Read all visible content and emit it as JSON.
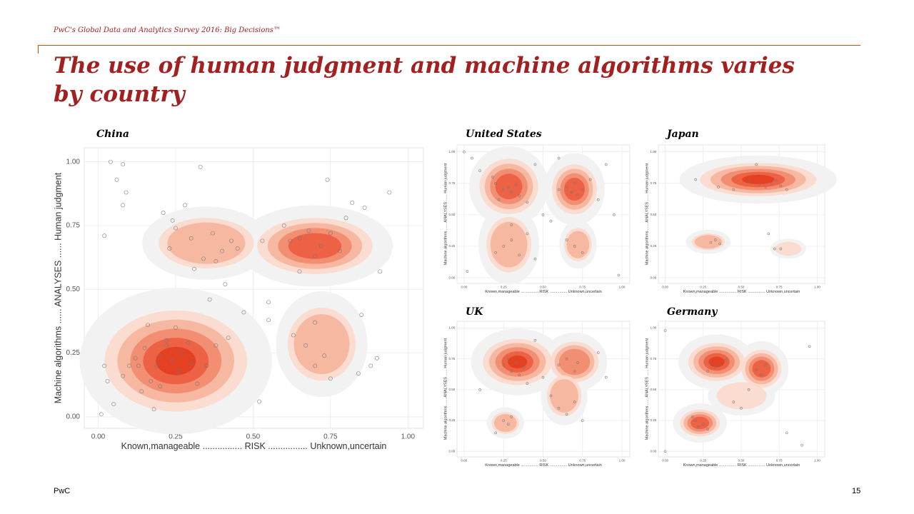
{
  "header": {
    "survey": "PwC's Global Data and Analytics Survey 2016: Big Decisions™",
    "title": "The use of human judgment and machine algorithms varies by country"
  },
  "footer": {
    "brand": "PwC",
    "page": "15"
  },
  "chart_data": [
    {
      "type": "scatter",
      "title": "China",
      "x_label": "Known,manageable ................ RISK ................ Unknown,uncertain",
      "y_label": "Machine algorithms ...... ANALYSES ...... Human judgment",
      "xlim": [
        -0.045,
        1.05
      ],
      "ylim": [
        -0.045,
        1.055
      ],
      "xticks": [
        {
          "value": 0,
          "label": "0.00"
        },
        {
          "value": 0.25,
          "label": "0.25"
        },
        {
          "value": 0.5,
          "label": "0.50"
        },
        {
          "value": 0.75,
          "label": "0.75"
        },
        {
          "value": 1,
          "label": "1.00"
        }
      ],
      "yticks": [
        {
          "value": 0,
          "label": "0.00"
        },
        {
          "value": 0.25,
          "label": "0.25"
        },
        {
          "value": 0.5,
          "label": "0.50"
        },
        {
          "value": 0.75,
          "label": "0.75"
        },
        {
          "value": 1,
          "label": "1.00"
        }
      ],
      "x": [
        0.04,
        0.08,
        0.06,
        0.09,
        0.08,
        0.33,
        0.02,
        0.21,
        0.24,
        0.28,
        0.25,
        0.23,
        0.3,
        0.37,
        0.4,
        0.43,
        0.45,
        0.34,
        0.38,
        0.41,
        0.53,
        0.62,
        0.65,
        0.68,
        0.72,
        0.75,
        0.7,
        0.78,
        0.8,
        0.82,
        0.86,
        0.74,
        0.94,
        0.91,
        0.65,
        0.6,
        0.55,
        0.63,
        0.67,
        0.7,
        0.73,
        0.7,
        0.75,
        0.84,
        0.88,
        0.9,
        0.85,
        0.55,
        0.52,
        0.02,
        0.03,
        0.01,
        0.05,
        0.08,
        0.1,
        0.12,
        0.14,
        0.15,
        0.17,
        0.19,
        0.2,
        0.22,
        0.24,
        0.26,
        0.27,
        0.29,
        0.3,
        0.32,
        0.25,
        0.2,
        0.18,
        0.35,
        0.38,
        0.42,
        0.36,
        0.47,
        0.31,
        0.16,
        0.22,
        0.13
      ],
      "y": [
        1.0,
        0.99,
        0.93,
        0.88,
        0.83,
        0.98,
        0.71,
        0.8,
        0.77,
        0.83,
        0.74,
        0.66,
        0.7,
        0.72,
        0.65,
        0.69,
        0.66,
        0.62,
        0.61,
        0.52,
        0.69,
        0.69,
        0.7,
        0.73,
        0.67,
        0.72,
        0.63,
        0.65,
        0.78,
        0.84,
        0.82,
        0.93,
        0.88,
        0.57,
        0.57,
        0.75,
        0.45,
        0.32,
        0.28,
        0.37,
        0.24,
        0.2,
        0.15,
        0.17,
        0.2,
        0.23,
        0.4,
        0.38,
        0.06,
        0.2,
        0.14,
        0.01,
        0.05,
        0.16,
        0.2,
        0.23,
        0.1,
        0.27,
        0.14,
        0.2,
        0.24,
        0.3,
        0.22,
        0.18,
        0.25,
        0.29,
        0.21,
        0.13,
        0.35,
        0.12,
        0.03,
        0.2,
        0.28,
        0.31,
        0.46,
        0.41,
        0.58,
        0.36,
        0.28,
        0.2
      ]
    },
    {
      "type": "scatter",
      "title": "United States",
      "x_label": "Known,manageable ................ RISK ................ Unknown,uncertain",
      "y_label": "Machine algorithms ...... ANALYSES ...... Human judgment",
      "xlim": [
        -0.045,
        1.05
      ],
      "ylim": [
        -0.045,
        1.055
      ],
      "xticks": [
        {
          "value": 0,
          "label": "0.00"
        },
        {
          "value": 0.25,
          "label": "0.25"
        },
        {
          "value": 0.5,
          "label": "0.50"
        },
        {
          "value": 0.75,
          "label": "0.75"
        },
        {
          "value": 1,
          "label": "1.00"
        }
      ],
      "yticks": [
        {
          "value": 0,
          "label": "0.00"
        },
        {
          "value": 0.25,
          "label": "0.25"
        },
        {
          "value": 0.5,
          "label": "0.50"
        },
        {
          "value": 0.75,
          "label": "0.75"
        },
        {
          "value": 1,
          "label": "1.00"
        }
      ],
      "x": [
        0.0,
        0.05,
        0.1,
        0.2,
        0.25,
        0.28,
        0.3,
        0.33,
        0.35,
        0.22,
        0.18,
        0.4,
        0.45,
        0.6,
        0.65,
        0.68,
        0.7,
        0.72,
        0.75,
        0.8,
        0.85,
        0.9,
        0.95,
        0.2,
        0.25,
        0.3,
        0.35,
        0.4,
        0.45,
        0.65,
        0.7,
        0.75,
        0.5,
        0.55,
        0.02,
        0.98,
        0.6,
        0.3
      ],
      "y": [
        1.0,
        0.95,
        0.85,
        0.75,
        0.7,
        0.72,
        0.68,
        0.74,
        0.65,
        0.62,
        0.8,
        0.6,
        0.9,
        0.7,
        0.72,
        0.68,
        0.75,
        0.66,
        0.7,
        0.78,
        0.62,
        0.9,
        0.5,
        0.2,
        0.25,
        0.3,
        0.18,
        0.35,
        0.15,
        0.3,
        0.25,
        0.2,
        0.5,
        0.45,
        0.05,
        0.02,
        0.95,
        0.42
      ]
    },
    {
      "type": "scatter",
      "title": "Japan",
      "x_label": "Known,manageable ................ RISK ................ Unknown,uncertain",
      "y_label": "Machine algorithms ...... ANALYSES ...... Human judgment",
      "xlim": [
        -0.045,
        1.05
      ],
      "ylim": [
        -0.045,
        1.055
      ],
      "xticks": [
        {
          "value": 0,
          "label": "0.00"
        },
        {
          "value": 0.25,
          "label": "0.25"
        },
        {
          "value": 0.5,
          "label": "0.50"
        },
        {
          "value": 0.75,
          "label": "0.75"
        },
        {
          "value": 1,
          "label": "1.00"
        }
      ],
      "yticks": [
        {
          "value": 0,
          "label": "0.00"
        },
        {
          "value": 0.25,
          "label": "0.25"
        },
        {
          "value": 0.5,
          "label": "0.50"
        },
        {
          "value": 0.75,
          "label": "0.75"
        },
        {
          "value": 1,
          "label": "1.00"
        }
      ],
      "x": [
        0.2,
        0.35,
        0.45,
        0.55,
        0.62,
        0.66,
        0.7,
        0.73,
        0.76,
        0.8,
        0.6,
        0.3,
        0.33,
        0.36,
        0.72,
        0.76,
        0.68
      ],
      "y": [
        0.78,
        0.72,
        0.7,
        0.76,
        0.74,
        0.72,
        0.75,
        0.77,
        0.73,
        0.7,
        0.9,
        0.28,
        0.3,
        0.27,
        0.23,
        0.23,
        0.35
      ]
    },
    {
      "type": "scatter",
      "title": "UK",
      "x_label": "Known,manageable ................ RISK ................ Unknown,uncertain",
      "y_label": "Machine algorithms ...... ANALYSES ...... Human judgment",
      "xlim": [
        -0.045,
        1.05
      ],
      "ylim": [
        -0.045,
        1.055
      ],
      "xticks": [
        {
          "value": 0,
          "label": "0.00"
        },
        {
          "value": 0.25,
          "label": "0.25"
        },
        {
          "value": 0.5,
          "label": "0.50"
        },
        {
          "value": 0.75,
          "label": "0.75"
        },
        {
          "value": 1,
          "label": "1.00"
        }
      ],
      "yticks": [
        {
          "value": 0,
          "label": "0.00"
        },
        {
          "value": 0.25,
          "label": "0.25"
        },
        {
          "value": 0.5,
          "label": "0.50"
        },
        {
          "value": 0.75,
          "label": "0.75"
        },
        {
          "value": 1,
          "label": "1.00"
        }
      ],
      "x": [
        0.25,
        0.3,
        0.33,
        0.35,
        0.38,
        0.28,
        0.4,
        0.5,
        0.6,
        0.65,
        0.7,
        0.72,
        0.55,
        0.6,
        0.65,
        0.7,
        0.75,
        0.25,
        0.28,
        0.3,
        0.2,
        0.1,
        0.85,
        0.9,
        0.45
      ],
      "y": [
        0.7,
        0.65,
        0.72,
        0.62,
        0.68,
        0.75,
        0.55,
        0.6,
        0.7,
        0.75,
        0.65,
        0.72,
        0.45,
        0.35,
        0.3,
        0.4,
        0.25,
        0.25,
        0.22,
        0.28,
        0.15,
        0.5,
        0.8,
        0.6,
        0.9
      ]
    },
    {
      "type": "scatter",
      "title": "Germany",
      "x_label": "Known,manageable ................ RISK ................ Unknown,uncertain",
      "y_label": "Machine algorithms ...... ANALYSES ...... Human judgment",
      "xlim": [
        -0.045,
        1.05
      ],
      "ylim": [
        -0.045,
        1.055
      ],
      "xticks": [
        {
          "value": 0,
          "label": "0.00"
        },
        {
          "value": 0.25,
          "label": "0.25"
        },
        {
          "value": 0.5,
          "label": "0.50"
        },
        {
          "value": 0.75,
          "label": "0.75"
        },
        {
          "value": 1,
          "label": "1.00"
        }
      ],
      "yticks": [
        {
          "value": 0,
          "label": "0.00"
        },
        {
          "value": 0.25,
          "label": "0.25"
        },
        {
          "value": 0.5,
          "label": "0.50"
        },
        {
          "value": 0.75,
          "label": "0.75"
        },
        {
          "value": 1,
          "label": "1.00"
        }
      ],
      "x": [
        0.0,
        0.3,
        0.33,
        0.36,
        0.4,
        0.28,
        0.6,
        0.63,
        0.66,
        0.55,
        0.2,
        0.22,
        0.25,
        0.18,
        0.28,
        0.45,
        0.5,
        0.8,
        0.95,
        0.0,
        0.9
      ],
      "y": [
        0.98,
        0.72,
        0.68,
        0.7,
        0.74,
        0.65,
        0.66,
        0.62,
        0.7,
        0.5,
        0.25,
        0.2,
        0.22,
        0.28,
        0.18,
        0.4,
        0.35,
        0.15,
        0.85,
        0.0,
        0.05
      ]
    }
  ]
}
